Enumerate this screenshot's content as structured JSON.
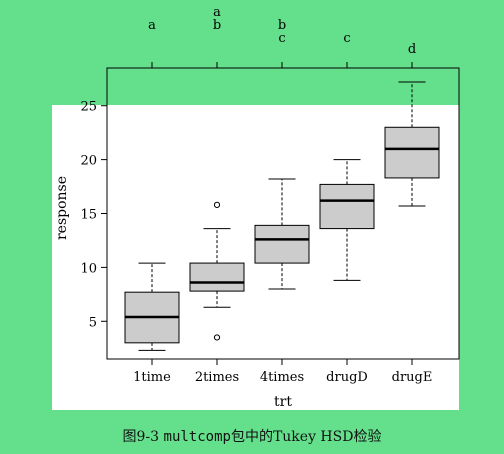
{
  "chart_data": {
    "type": "box",
    "xlabel": "trt",
    "ylabel": "response",
    "ylim": [
      1.5,
      28.5
    ],
    "yticks": [
      5,
      10,
      15,
      20,
      25
    ],
    "categories": [
      "1time",
      "2times",
      "4times",
      "drugD",
      "drugE"
    ],
    "boxes": [
      {
        "whisker_low": 2.3,
        "q1": 3.0,
        "median": 5.4,
        "q3": 7.7,
        "whisker_high": 10.4,
        "outliers": []
      },
      {
        "whisker_low": 6.3,
        "q1": 7.8,
        "median": 8.6,
        "q3": 10.4,
        "whisker_high": 13.6,
        "outliers": [
          3.5,
          15.8
        ]
      },
      {
        "whisker_low": 8.0,
        "q1": 10.4,
        "median": 12.6,
        "q3": 13.9,
        "whisker_high": 18.2,
        "outliers": []
      },
      {
        "whisker_low": 8.8,
        "q1": 13.6,
        "median": 16.2,
        "q3": 17.7,
        "whisker_high": 20.0,
        "outliers": []
      },
      {
        "whisker_low": 15.7,
        "q1": 18.3,
        "median": 21.0,
        "q3": 23.0,
        "whisker_high": 27.2,
        "outliers": []
      }
    ],
    "group_letters": [
      [
        "a"
      ],
      [
        "a",
        "b"
      ],
      [
        "b",
        "c"
      ],
      [
        "c"
      ],
      [
        "d"
      ]
    ],
    "box_color": "#cccccc",
    "grid": false
  },
  "caption": {
    "prefix": "图9-3",
    "code": "multcomp",
    "suffix": "包中的Tukey HSD检验"
  },
  "colors": {
    "background": "#64e08c",
    "panel": "#ffffff"
  }
}
